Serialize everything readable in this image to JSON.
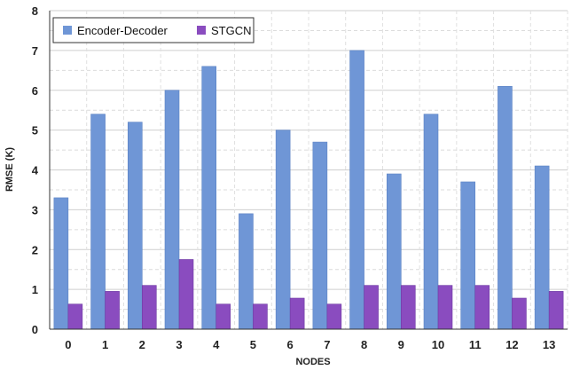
{
  "chart_data": {
    "type": "bar",
    "categories": [
      "0",
      "1",
      "2",
      "3",
      "4",
      "5",
      "6",
      "7",
      "8",
      "9",
      "10",
      "11",
      "12",
      "13"
    ],
    "series": [
      {
        "name": "Encoder-Decoder",
        "color": "#6f96d6",
        "values": [
          3.3,
          5.4,
          5.2,
          6.0,
          6.6,
          2.9,
          5.0,
          4.7,
          7.0,
          3.9,
          5.4,
          3.7,
          6.1,
          4.1
        ]
      },
      {
        "name": "STGCN",
        "color": "#8a4cbf",
        "values": [
          0.63,
          0.95,
          1.1,
          1.75,
          0.63,
          0.63,
          0.78,
          0.63,
          1.1,
          1.1,
          1.1,
          1.1,
          0.78,
          0.95
        ]
      }
    ],
    "title": "",
    "xlabel": "NODES",
    "ylabel": "RMSE (K)",
    "ylim": [
      0,
      8
    ],
    "yticks": [
      "0",
      "1",
      "2",
      "3",
      "4",
      "5",
      "6",
      "7",
      "8"
    ],
    "grid": true,
    "legend_position": "top-left"
  }
}
